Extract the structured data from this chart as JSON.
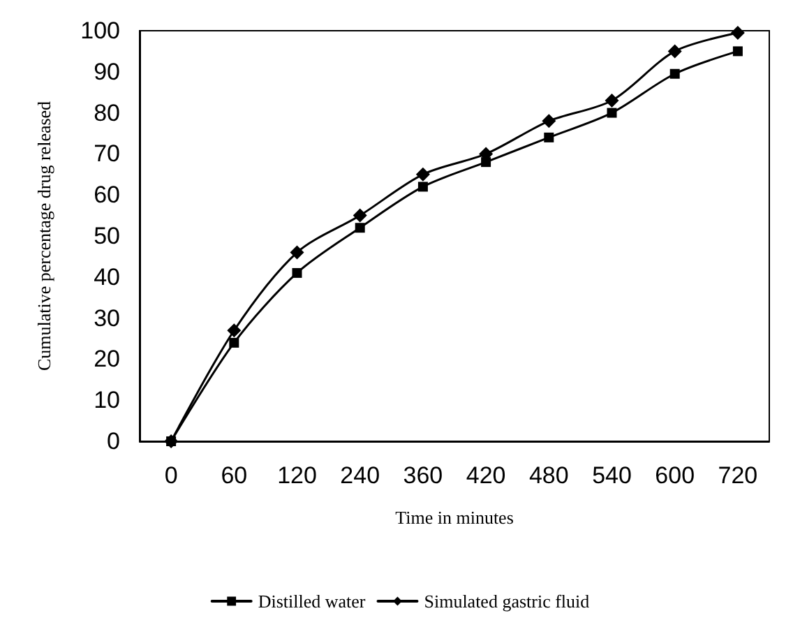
{
  "chart_data": {
    "type": "line",
    "xlabel": "Time in minutes",
    "ylabel": "Cumulative percentage drug released",
    "categories": [
      "0",
      "60",
      "120",
      "240",
      "360",
      "420",
      "480",
      "540",
      "600",
      "720"
    ],
    "series": [
      {
        "name": "Distilled water",
        "color": "#000000",
        "marker": "square",
        "values": [
          0,
          24,
          41,
          52,
          62,
          68,
          74,
          80,
          89.5,
          95
        ]
      },
      {
        "name": "Simulated gastric fluid",
        "color": "#000000",
        "marker": "diamond",
        "values": [
          0,
          27,
          46,
          55,
          65,
          70,
          78,
          83,
          95,
          99.5
        ]
      }
    ],
    "ylim": [
      0,
      100
    ],
    "yticks": [
      0,
      10,
      20,
      30,
      40,
      50,
      60,
      70,
      80,
      90,
      100
    ],
    "grid": false,
    "legend": "bottom",
    "line_style": "solid"
  }
}
